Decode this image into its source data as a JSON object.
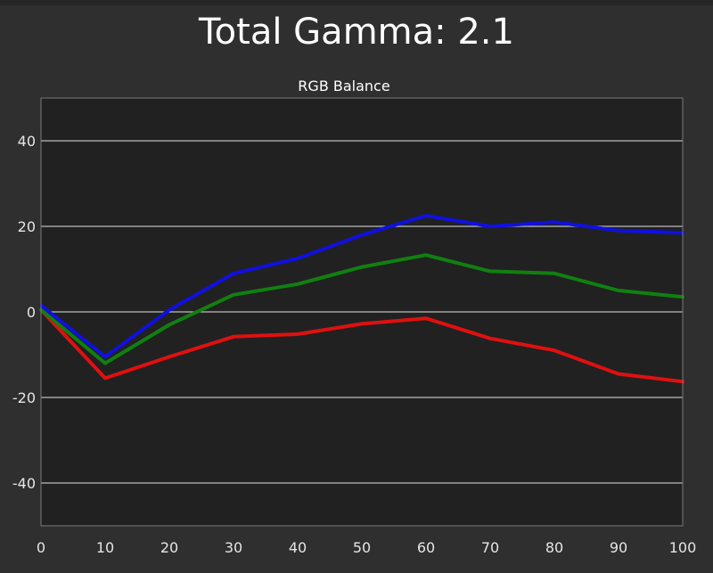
{
  "header": {
    "title": "Total Gamma: 2.1"
  },
  "colors": {
    "page_background": "#2f2f2f",
    "plot_background": "#212121",
    "grid": "#bdbdbd",
    "axis_text": "#e6e6e6",
    "title_text": "#ffffff"
  },
  "chart_data": {
    "type": "line",
    "title": "RGB Balance",
    "xlabel": "",
    "ylabel": "",
    "x": [
      0,
      10,
      20,
      30,
      40,
      50,
      60,
      70,
      80,
      90,
      100
    ],
    "xlim": [
      0,
      100
    ],
    "ylim": [
      -50,
      50
    ],
    "x_ticks": [
      0,
      10,
      20,
      30,
      40,
      50,
      60,
      70,
      80,
      90,
      100
    ],
    "y_ticks": [
      -40,
      -20,
      0,
      20,
      40
    ],
    "grid": "horizontal",
    "legend": "none",
    "series": [
      {
        "color": "#e01010",
        "values": [
          0.5,
          -15.5,
          -10.5,
          -5.8,
          -5.2,
          -2.8,
          -1.5,
          -6.2,
          -9,
          -14.5,
          -16.3
        ]
      },
      {
        "color": "#108010",
        "values": [
          0.5,
          -12,
          -3,
          4,
          6.5,
          10.5,
          13.3,
          9.5,
          9,
          5,
          3.5
        ]
      },
      {
        "color": "#1010e0",
        "values": [
          1.5,
          -10.5,
          0.5,
          9,
          12.5,
          18,
          22.5,
          20,
          21,
          19,
          18.5
        ]
      }
    ]
  }
}
